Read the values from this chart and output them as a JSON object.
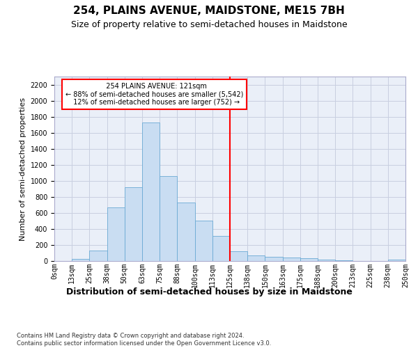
{
  "title": "254, PLAINS AVENUE, MAIDSTONE, ME15 7BH",
  "subtitle": "Size of property relative to semi-detached houses in Maidstone",
  "xlabel": "Distribution of semi-detached houses by size in Maidstone",
  "ylabel": "Number of semi-detached properties",
  "footer_line1": "Contains HM Land Registry data © Crown copyright and database right 2024.",
  "footer_line2": "Contains public sector information licensed under the Open Government Licence v3.0.",
  "bin_labels": [
    "0sqm",
    "13sqm",
    "25sqm",
    "38sqm",
    "50sqm",
    "63sqm",
    "75sqm",
    "88sqm",
    "100sqm",
    "113sqm",
    "125sqm",
    "138sqm",
    "150sqm",
    "163sqm",
    "175sqm",
    "188sqm",
    "200sqm",
    "213sqm",
    "225sqm",
    "238sqm",
    "250sqm"
  ],
  "bar_values": [
    0,
    25,
    130,
    670,
    920,
    1730,
    1055,
    730,
    500,
    310,
    125,
    70,
    55,
    45,
    35,
    15,
    10,
    0,
    0,
    15
  ],
  "bar_color": "#c9ddf2",
  "bar_edge_color": "#6aaad4",
  "property_label": "254 PLAINS AVENUE: 121sqm",
  "pct_smaller": 88,
  "pct_smaller_count": 5542,
  "pct_larger": 12,
  "pct_larger_count": 752,
  "vline_color": "red",
  "ylim_max": 2300,
  "yticks": [
    0,
    200,
    400,
    600,
    800,
    1000,
    1200,
    1400,
    1600,
    1800,
    2000,
    2200
  ],
  "grid_color": "#c8cfe0",
  "bg_color": "#eaeff8",
  "title_fontsize": 11,
  "subtitle_fontsize": 9,
  "ylabel_fontsize": 8,
  "xlabel_fontsize": 9,
  "tick_fontsize": 7,
  "annot_fontsize": 7,
  "footer_fontsize": 6
}
